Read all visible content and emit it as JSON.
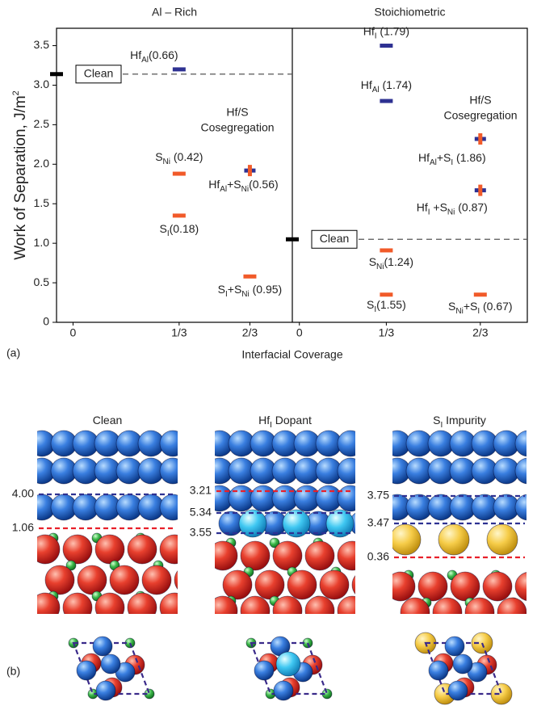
{
  "chart_data": {
    "type": "dot-panels",
    "ylabel": [
      {
        "t": "Work of Separation, J/m"
      },
      {
        "sup": "2"
      }
    ],
    "xlabel": "Interfacial Coverage",
    "panel_label": "(a)",
    "ylim": [
      0,
      3.72
    ],
    "yticks": [
      0,
      0.5,
      {
        "value": 1,
        "label": "1.0"
      },
      1.5,
      {
        "value": 2,
        "label": "2.0"
      },
      2.5,
      {
        "value": 3,
        "label": "3.0"
      },
      3.5
    ],
    "categories": [
      "0",
      "1/3",
      "2/3"
    ],
    "panels": [
      {
        "title": "Al – Rich",
        "clean": {
          "label": "Clean",
          "value": 3.14
        },
        "annotation": [
          "Hf/S",
          "Cosegregation"
        ],
        "points": [
          {
            "category": "1/3",
            "value": 3.2,
            "color": "#2e3192",
            "label": [
              {
                "t": "Hf"
              },
              {
                "sub": "Al"
              },
              {
                "t": "(0.66)"
              }
            ]
          },
          {
            "category": "1/3",
            "value": 1.88,
            "color": "#f15a29",
            "label": [
              {
                "t": "S"
              },
              {
                "sub": "Ni"
              },
              {
                "t": " (0.42)"
              }
            ]
          },
          {
            "category": "1/3",
            "value": 1.35,
            "color": "#f15a29",
            "label": [
              {
                "t": "S"
              },
              {
                "sub": "I"
              },
              {
                "t": "(0.18)"
              }
            ]
          },
          {
            "category": "2/3",
            "value": 1.92,
            "color": [
              "#2e3192",
              "#f15a29"
            ],
            "label": [
              {
                "t": "Hf"
              },
              {
                "sub": "Al"
              },
              {
                "t": "+S"
              },
              {
                "sub": "Ni"
              },
              {
                "t": "(0.56)"
              }
            ]
          },
          {
            "category": "2/3",
            "value": 0.58,
            "color": "#f15a29",
            "label": [
              {
                "t": "S"
              },
              {
                "sub": "I"
              },
              {
                "t": "+S"
              },
              {
                "sub": "Ni"
              },
              {
                "t": " (0.95)"
              }
            ]
          }
        ]
      },
      {
        "title": "Stoichiometric",
        "clean": {
          "label": "Clean",
          "value": 1.05
        },
        "annotation": [
          "Hf/S",
          "Cosegregation"
        ],
        "points": [
          {
            "category": "1/3",
            "value": 3.5,
            "color": "#2e3192",
            "label": [
              {
                "t": "Hf"
              },
              {
                "sub": "I"
              },
              {
                "t": " (1.79)"
              }
            ]
          },
          {
            "category": "1/3",
            "value": 2.8,
            "color": "#2e3192",
            "label": [
              {
                "t": "Hf"
              },
              {
                "sub": "Al"
              },
              {
                "t": " (1.74)"
              }
            ]
          },
          {
            "category": "1/3",
            "value": 0.91,
            "color": "#f15a29",
            "label": [
              {
                "t": "S"
              },
              {
                "sub": "Ni"
              },
              {
                "t": "(1.24)"
              }
            ]
          },
          {
            "category": "1/3",
            "value": 0.35,
            "color": "#f15a29",
            "label": [
              {
                "t": "S"
              },
              {
                "sub": "I"
              },
              {
                "t": "(1.55)"
              }
            ]
          },
          {
            "category": "2/3",
            "value": 2.32,
            "color": [
              "#2e3192",
              "#f15a29"
            ],
            "label": [
              {
                "t": "Hf"
              },
              {
                "sub": "Al"
              },
              {
                "t": "+S"
              },
              {
                "sub": "I"
              },
              {
                "t": " (1.86)"
              }
            ]
          },
          {
            "category": "2/3",
            "value": 1.67,
            "color": [
              "#2e3192",
              "#f15a29"
            ],
            "label": [
              {
                "t": "Hf"
              },
              {
                "sub": "I"
              },
              {
                "t": " +S"
              },
              {
                "sub": "Ni"
              },
              {
                "t": " (0.87)"
              }
            ]
          },
          {
            "category": "2/3",
            "value": 0.35,
            "color": "#f15a29",
            "label": [
              {
                "t": "S"
              },
              {
                "sub": "Ni"
              },
              {
                "t": "+S"
              },
              {
                "sub": "I"
              },
              {
                "t": " (0.67)"
              }
            ]
          }
        ]
      }
    ]
  },
  "figure_b": {
    "label": "(b)",
    "panels": [
      {
        "title": [
          {
            "t": "Clean"
          }
        ],
        "levels": [
          {
            "label": "4.00",
            "color": "#2e3192"
          },
          {
            "label": "1.06",
            "color": "#e8202a"
          }
        ]
      },
      {
        "title": [
          {
            "t": "Hf"
          },
          {
            "sub": "I"
          },
          {
            "t": " Dopant"
          }
        ],
        "levels": [
          {
            "label": "3.21",
            "color": "#e8202a"
          },
          {
            "label": "5.34",
            "color": "#2e3192"
          },
          {
            "label": "3.55",
            "color": "#2e3192"
          }
        ]
      },
      {
        "title": [
          {
            "t": "S"
          },
          {
            "sub": "I"
          },
          {
            "t": " Impurity"
          }
        ],
        "levels": [
          {
            "label": "3.75",
            "color": "#2e3192"
          },
          {
            "label": "3.47",
            "color": "#2e3192"
          },
          {
            "label": "0.36",
            "color": "#e8202a"
          }
        ]
      }
    ]
  }
}
